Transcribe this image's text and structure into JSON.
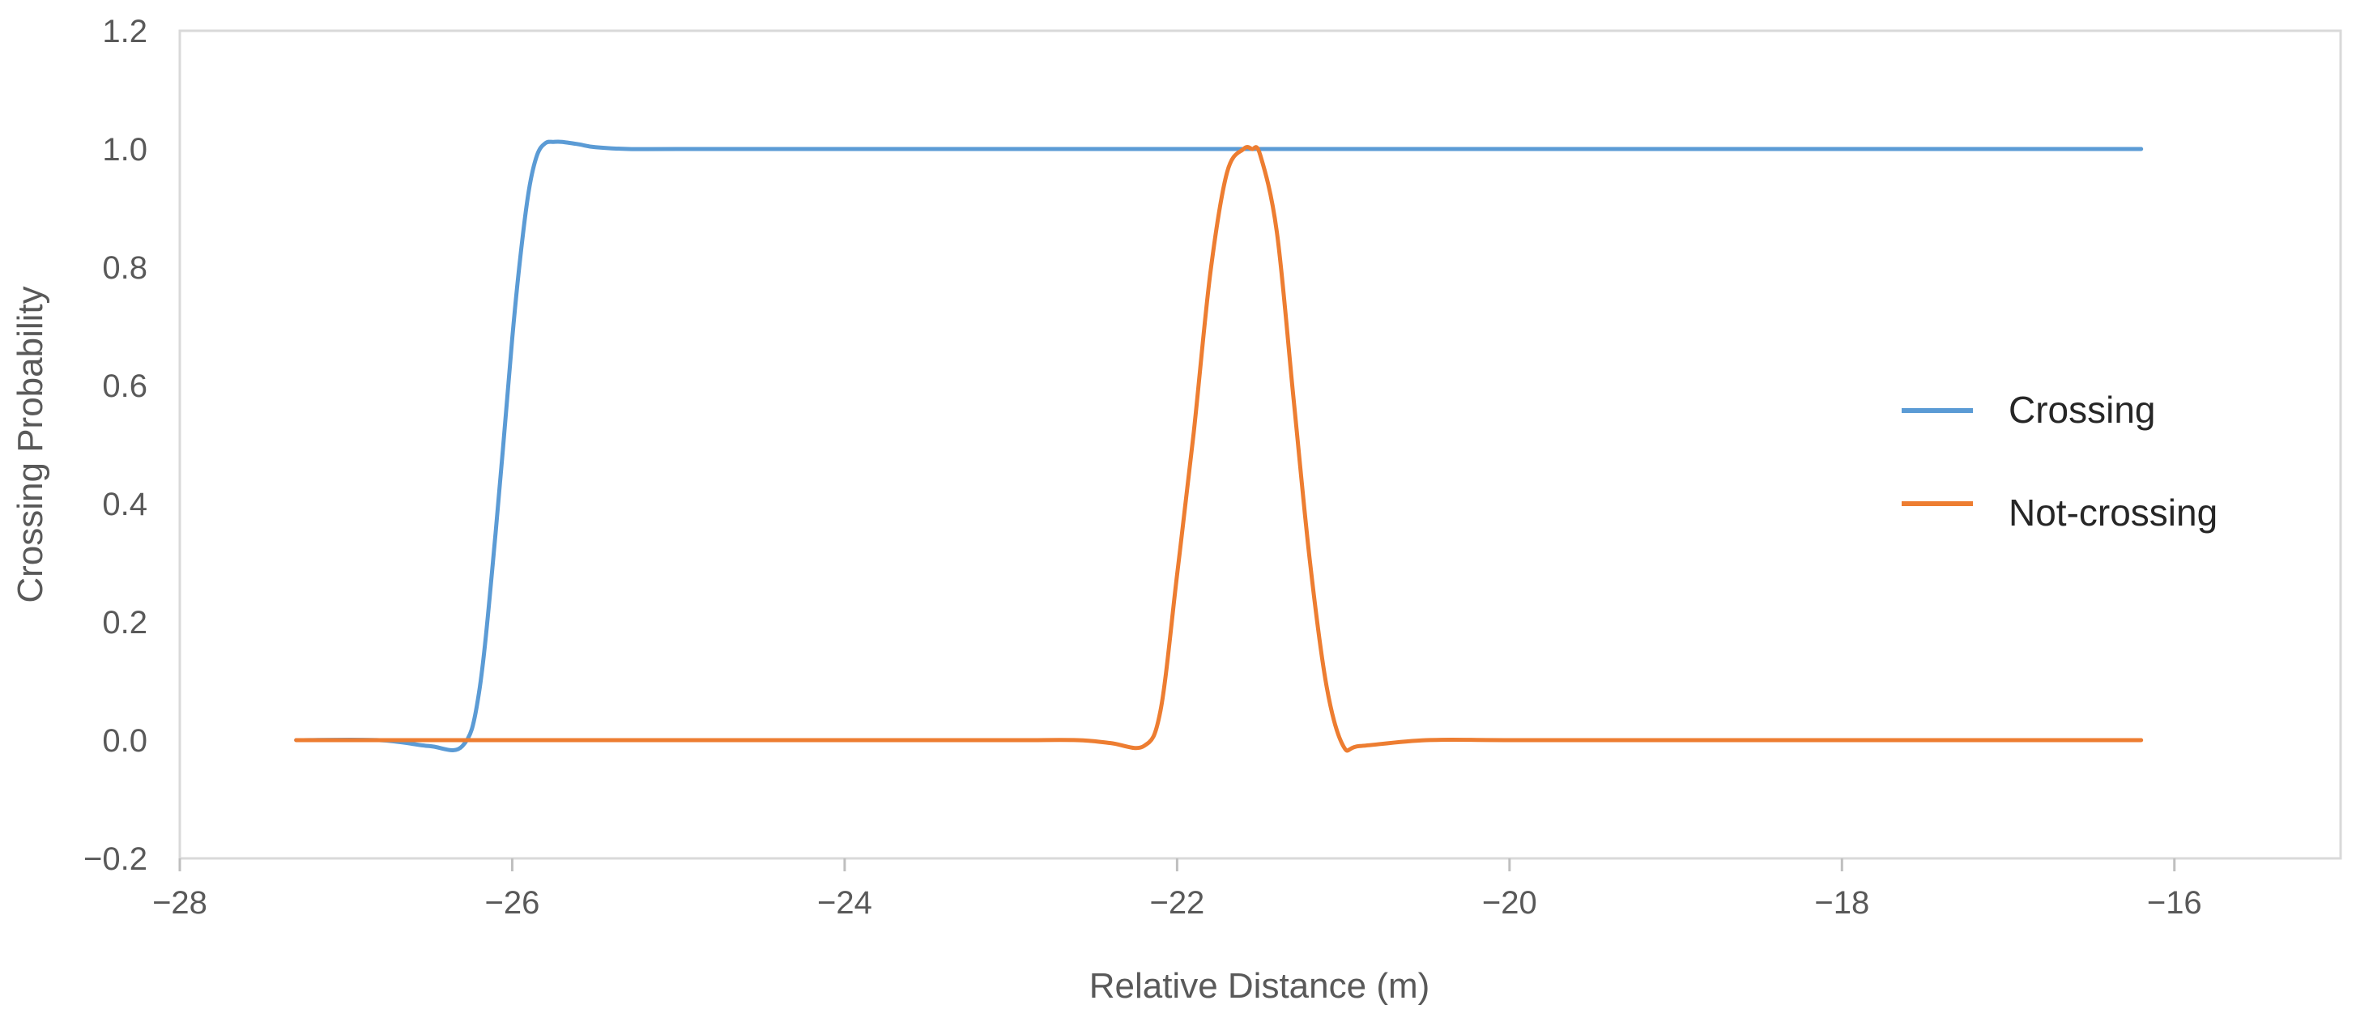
{
  "chart_data": {
    "type": "line",
    "title": "",
    "xlabel": "Relative Distance (m)",
    "ylabel": "Crossing Probability",
    "xlim": [
      -28,
      -15
    ],
    "ylim": [
      -0.2,
      1.2
    ],
    "xticks": [
      -28,
      -26,
      -24,
      -22,
      -20,
      -18,
      -16
    ],
    "yticks": [
      -0.2,
      0.0,
      0.2,
      0.4,
      0.6,
      0.8,
      1.0,
      1.2
    ],
    "xtick_labels": [
      "−28",
      "−26",
      "−24",
      "−22",
      "−20",
      "−18",
      "−16"
    ],
    "ytick_labels": [
      "−0.2",
      "0.0",
      "0.2",
      "0.4",
      "0.6",
      "0.8",
      "1.0",
      "1.2"
    ],
    "grid": false,
    "legend_position": "right",
    "series": [
      {
        "name": "Crossing",
        "color": "#5b9bd5",
        "x": [
          -27.3,
          -26.8,
          -26.5,
          -26.3,
          -26.2,
          -26.1,
          -26.0,
          -25.95,
          -25.9,
          -25.85,
          -25.8,
          -25.75,
          -25.7,
          -25.6,
          -25.5,
          -25.3,
          -25.0,
          -24.0,
          -23.0,
          -22.0,
          -21.0,
          -20.0,
          -19.0,
          -18.0,
          -17.0,
          -16.2
        ],
        "y": [
          0.0,
          0.0,
          -0.01,
          -0.01,
          0.08,
          0.35,
          0.68,
          0.82,
          0.93,
          0.99,
          1.01,
          1.012,
          1.012,
          1.008,
          1.003,
          1.0,
          1.0,
          1.0,
          1.0,
          1.0,
          1.0,
          1.0,
          1.0,
          1.0,
          1.0,
          1.0
        ]
      },
      {
        "name": "Not-crossing",
        "color": "#ed7d31",
        "x": [
          -27.3,
          -26.0,
          -25.0,
          -24.0,
          -23.0,
          -22.6,
          -22.4,
          -22.2,
          -22.1,
          -22.0,
          -21.9,
          -21.8,
          -21.7,
          -21.6,
          -21.55,
          -21.5,
          -21.4,
          -21.3,
          -21.2,
          -21.1,
          -21.0,
          -20.9,
          -20.5,
          -20.0,
          -19.0,
          -18.0,
          -17.0,
          -16.2
        ],
        "y": [
          0.0,
          0.0,
          0.0,
          0.0,
          0.0,
          0.0,
          -0.005,
          -0.01,
          0.05,
          0.28,
          0.52,
          0.79,
          0.96,
          1.0,
          1.0,
          0.99,
          0.86,
          0.58,
          0.3,
          0.09,
          -0.01,
          -0.01,
          0.0,
          0.0,
          0.0,
          0.0,
          0.0,
          0.0
        ]
      }
    ]
  }
}
